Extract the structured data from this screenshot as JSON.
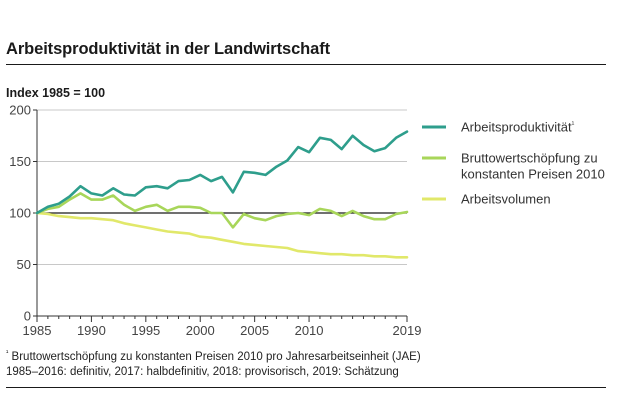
{
  "title": "Arbeitsproduktivität in der Landwirtschaft",
  "subtitle": "Index 1985 = 100",
  "footnotes": {
    "note1_marker": "¹",
    "note1_text": "Bruttowertschöpfung zu konstanten Preisen 2010 pro Jahresarbeitseinheit (JAE)",
    "note2_text": "1985–2016: definitiv, 2017: halbdefinitiv, 2018: provisorisch, 2019: Schätzung"
  },
  "colors": {
    "arbeitsproduktivitaet": "#2e9e8c",
    "bruttowertschoepfung": "#a8d65a",
    "arbeitsvolumen": "#e1e86a",
    "axis": "#333333",
    "grid": "#c8c8c8",
    "reference_line": "#1a1a1a"
  },
  "chart_data": {
    "type": "line",
    "title": "Arbeitsproduktivität in der Landwirtschaft",
    "ylabel": "Index 1985 = 100",
    "xlabel": "",
    "xlim": [
      1985,
      2019
    ],
    "ylim": [
      0,
      200
    ],
    "x_ticks": [
      1985,
      1990,
      1995,
      2000,
      2005,
      2010,
      2019
    ],
    "y_ticks": [
      0,
      50,
      100,
      150,
      200
    ],
    "grid": true,
    "legend_position": "right",
    "x": [
      1985,
      1986,
      1987,
      1988,
      1989,
      1990,
      1991,
      1992,
      1993,
      1994,
      1995,
      1996,
      1997,
      1998,
      1999,
      2000,
      2001,
      2002,
      2003,
      2004,
      2005,
      2006,
      2007,
      2008,
      2009,
      2010,
      2011,
      2012,
      2013,
      2014,
      2015,
      2016,
      2017,
      2018,
      2019
    ],
    "series": [
      {
        "name": "Arbeitsproduktivität",
        "name_suffix": "¹",
        "color_key": "arbeitsproduktivitaet",
        "values": [
          100,
          106,
          109,
          116,
          126,
          119,
          117,
          124,
          118,
          117,
          125,
          126,
          124,
          131,
          132,
          137,
          131,
          135,
          120,
          140,
          139,
          137,
          145,
          151,
          164,
          159,
          173,
          171,
          162,
          175,
          166,
          160,
          163,
          173,
          179
        ]
      },
      {
        "name": "Bruttowertschöpfung zu konstanten Preisen 2010",
        "name_lines": [
          "Bruttowertschöpfung zu",
          "konstanten Preisen 2010"
        ],
        "color_key": "bruttowertschoepfung",
        "values": [
          100,
          104,
          106,
          113,
          119,
          113,
          113,
          117,
          108,
          102,
          106,
          108,
          102,
          106,
          106,
          105,
          100,
          100,
          86,
          99,
          95,
          93,
          97,
          99,
          100,
          98,
          104,
          102,
          97,
          102,
          97,
          94,
          94,
          99,
          101
        ]
      },
      {
        "name": "Arbeitsvolumen",
        "color_key": "arbeitsvolumen",
        "values": [
          100,
          99,
          97,
          96,
          95,
          95,
          94,
          93,
          90,
          88,
          86,
          84,
          82,
          81,
          80,
          77,
          76,
          74,
          72,
          70,
          69,
          68,
          67,
          66,
          63,
          62,
          61,
          60,
          60,
          59,
          59,
          58,
          58,
          57,
          57
        ]
      }
    ]
  }
}
